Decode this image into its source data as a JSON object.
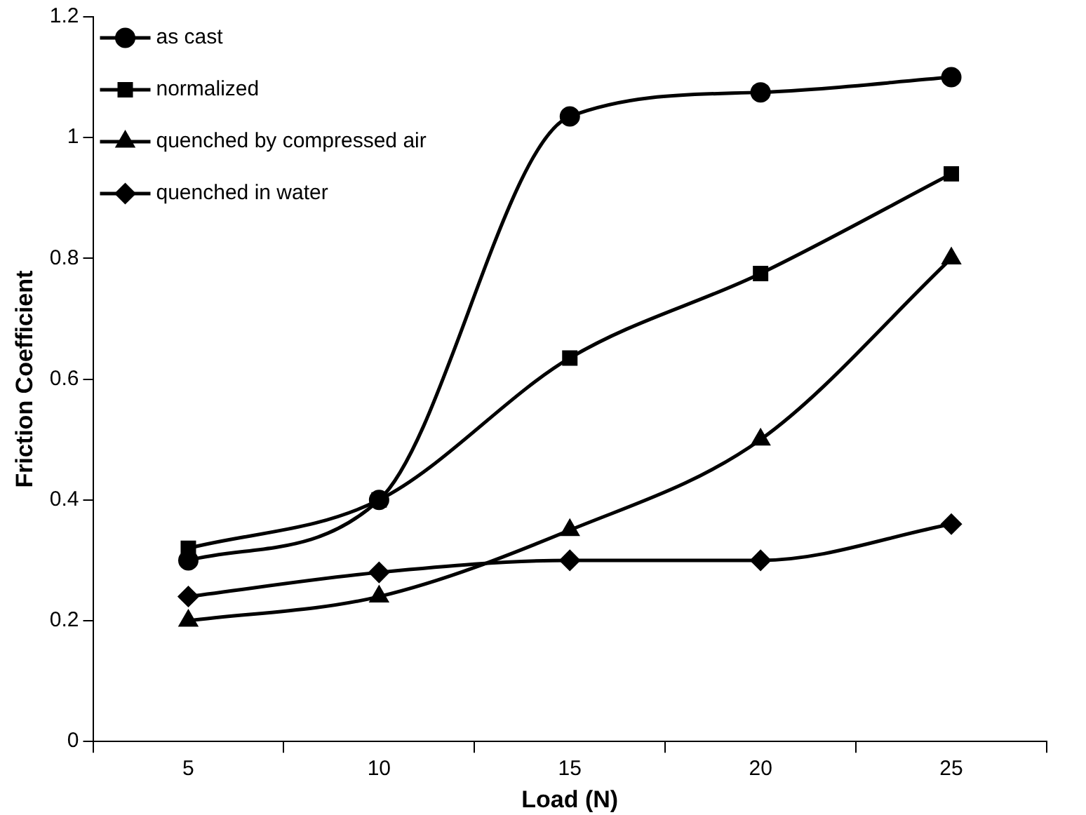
{
  "chart_data": {
    "type": "line",
    "xlabel": "Load (N)",
    "ylabel": "Friction Coefficient",
    "categories": [
      "5",
      "10",
      "15",
      "20",
      "25"
    ],
    "ylim": [
      0,
      1.2
    ],
    "yticks": [
      0,
      0.2,
      0.4,
      0.6,
      0.8,
      1,
      1.2
    ],
    "grid": false,
    "legend": "top left",
    "line_style": "solid",
    "series": [
      {
        "name": "as cast",
        "color": "#000000",
        "marker": "circle",
        "values": [
          0.3,
          0.4,
          1.035,
          1.075,
          1.1
        ]
      },
      {
        "name": "normalized",
        "color": "#000000",
        "marker": "square",
        "values": [
          0.32,
          0.4,
          0.635,
          0.775,
          0.94
        ]
      },
      {
        "name": "quenched by compressed air",
        "color": "#000000",
        "marker": "triangle",
        "values": [
          0.2,
          0.24,
          0.35,
          0.5,
          0.8
        ]
      },
      {
        "name": "quenched in water",
        "color": "#000000",
        "marker": "diamond",
        "values": [
          0.24,
          0.28,
          0.3,
          0.3,
          0.36
        ]
      }
    ]
  }
}
